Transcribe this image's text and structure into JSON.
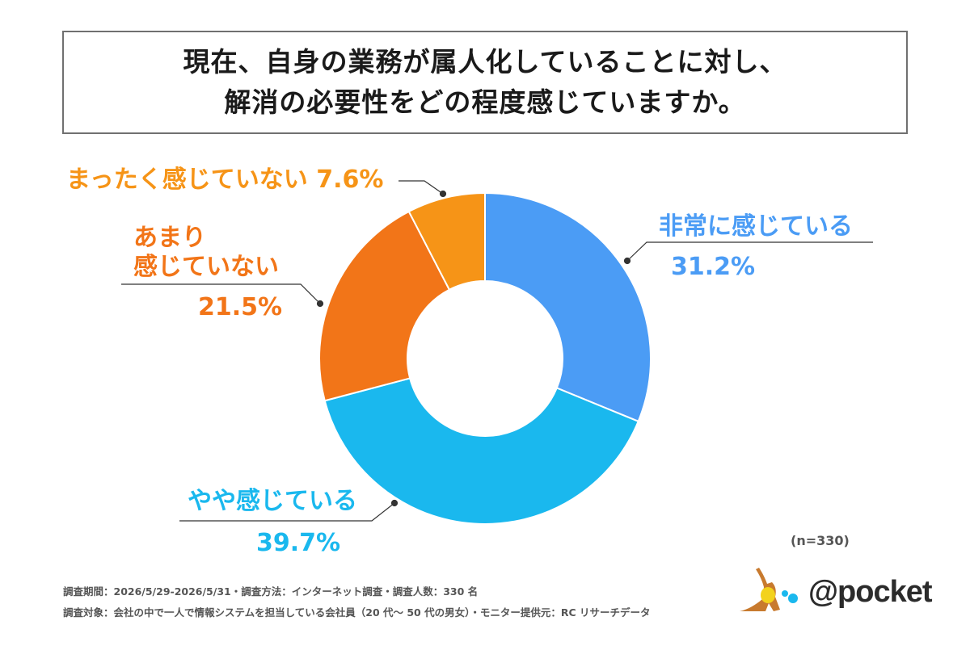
{
  "title": {
    "line1": "現在、自身の業務が属人化していることに対し、",
    "line2": "解消の必要性をどの程度感じていますか。"
  },
  "chart_data": {
    "type": "pie",
    "donut": true,
    "slices": [
      {
        "label": "非常に感じている",
        "value": 31.2,
        "value_text": "31.2%",
        "color": "#4b9cf5"
      },
      {
        "label": "やや感じている",
        "value": 39.7,
        "value_text": "39.7%",
        "color": "#1ab8ee"
      },
      {
        "label": "あまり感じていない",
        "value": 21.5,
        "value_text": "21.5%",
        "color": "#f27518"
      },
      {
        "label": "まったく感じていない",
        "value": 7.6,
        "value_text": "7.6%",
        "color": "#f69417"
      }
    ]
  },
  "labels": {
    "very_name": "非常に感じている",
    "very_pct": "31.2%",
    "somewhat_name": "やや感じている",
    "somewhat_pct": "39.7%",
    "notmuch_name1": "あまり",
    "notmuch_name2": "感じていない",
    "notmuch_pct": "21.5%",
    "notatall_text": "まったく感じていない 7.6%"
  },
  "sample_size": "(n=330)",
  "footer": {
    "line1": "調査期間：2026/5/29-2026/5/31・調査方法：インターネット調査・調査人数：330 名",
    "line2": "調査対象：会社の中で一人で情報システムを担当している会社員（20 代～ 50 代の男女）・モニター提供元：RC リサーチデータ"
  },
  "logo": {
    "text": "@pocket",
    "icon": "kangaroo-icon"
  },
  "colors": {
    "very": "#4b9cf5",
    "somewhat": "#1ab8ee",
    "notmuch": "#f27518",
    "notatall": "#f69417"
  }
}
